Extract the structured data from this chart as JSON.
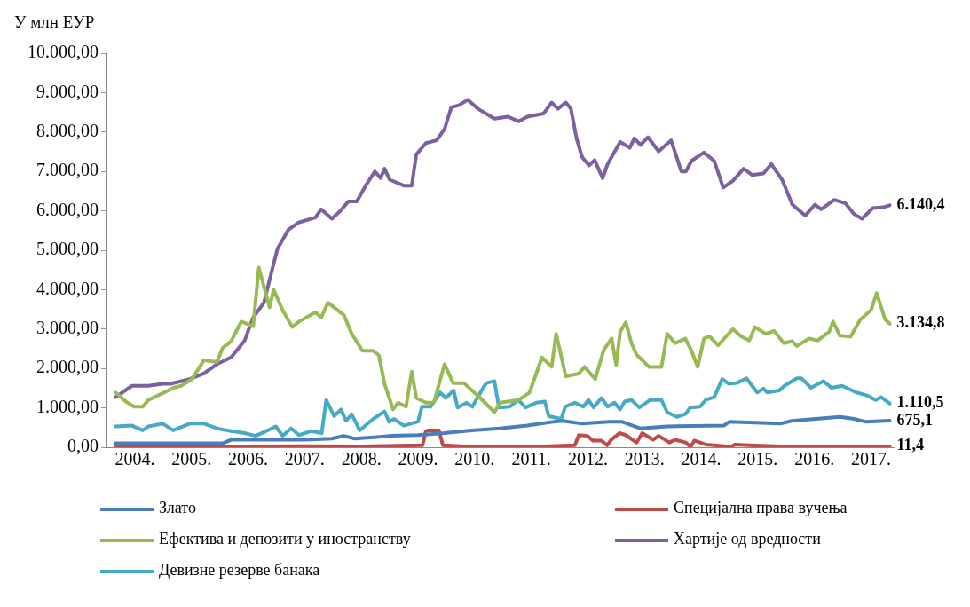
{
  "chart_data": {
    "type": "line",
    "ylabel": "У млн ЕУР",
    "xlim": [
      2004,
      2017.9
    ],
    "xticks": [
      {
        "value": 2004.5,
        "label": "2004."
      },
      {
        "value": 2005.5,
        "label": "2005."
      },
      {
        "value": 2006.5,
        "label": "2006."
      },
      {
        "value": 2007.5,
        "label": "2007."
      },
      {
        "value": 2008.5,
        "label": "2008."
      },
      {
        "value": 2009.5,
        "label": "2009."
      },
      {
        "value": 2010.5,
        "label": "2010."
      },
      {
        "value": 2011.5,
        "label": "2011."
      },
      {
        "value": 2012.5,
        "label": "2012."
      },
      {
        "value": 2013.5,
        "label": "2013."
      },
      {
        "value": 2014.5,
        "label": "2014."
      },
      {
        "value": 2015.5,
        "label": "2015."
      },
      {
        "value": 2016.5,
        "label": "2016."
      },
      {
        "value": 2017.5,
        "label": "2017."
      }
    ],
    "ylim": [
      0,
      10000
    ],
    "yticks": [
      {
        "value": 0,
        "label": "0,00"
      },
      {
        "value": 1000,
        "label": "1.000,00"
      },
      {
        "value": 2000,
        "label": "2.000,00"
      },
      {
        "value": 3000,
        "label": "3.000,00"
      },
      {
        "value": 4000,
        "label": "4.000,00"
      },
      {
        "value": 5000,
        "label": "5.000,00"
      },
      {
        "value": 6000,
        "label": "6.000,00"
      },
      {
        "value": 7000,
        "label": "7.000,00"
      },
      {
        "value": 8000,
        "label": "8.000,00"
      },
      {
        "value": 9000,
        "label": "9.000,00"
      },
      {
        "value": 10000,
        "label": "10.000,00"
      }
    ],
    "grid": false,
    "legend": "bottom",
    "marker": "none",
    "line_style": "solid",
    "series": [
      {
        "name": "Злато",
        "color": "#4a7ebb",
        "x": [
          2004.16,
          2005.5,
          2006.05,
          2006.2,
          2007.0,
          2007.5,
          2007.98,
          2008.19,
          2008.38,
          2008.77,
          2009.0,
          2009.5,
          2009.97,
          2010.45,
          2010.94,
          2011.43,
          2011.91,
          2012.05,
          2012.4,
          2012.88,
          2013.1,
          2013.42,
          2013.9,
          2014.9,
          2015.0,
          2015.9,
          2016.1,
          2016.95,
          2017.2,
          2017.4,
          2017.83
        ],
        "values": [
          100,
          100,
          100,
          190,
          190,
          190,
          220,
          290,
          220,
          260,
          290,
          310,
          360,
          430,
          480,
          550,
          650,
          670,
          600,
          650,
          650,
          480,
          530,
          550,
          650,
          600,
          670,
          770,
          720,
          650,
          675.1
        ],
        "value_labels": [
          null,
          null,
          null,
          null,
          null,
          null,
          null,
          null,
          null,
          null,
          null,
          null,
          null,
          null,
          null,
          null,
          null,
          null,
          null,
          null,
          null,
          null,
          null,
          null,
          null,
          null,
          null,
          null,
          null,
          null,
          "675,1"
        ]
      },
      {
        "name": "Специјална права вучења",
        "color": "#be4b48",
        "x": [
          2004.16,
          2005.5,
          2006.5,
          2007.5,
          2008.5,
          2009.58,
          2009.64,
          2009.68,
          2009.87,
          2009.94,
          2010.5,
          2011.5,
          2012.27,
          2012.34,
          2012.49,
          2012.59,
          2012.74,
          2012.84,
          2012.91,
          2013.06,
          2013.17,
          2013.36,
          2013.46,
          2013.65,
          2013.75,
          2013.94,
          2014.04,
          2014.23,
          2014.31,
          2014.38,
          2014.58,
          2014.73,
          2015.02,
          2015.1,
          2015.35,
          2015.89,
          2016.5,
          2017.0,
          2017.83
        ],
        "values": [
          20,
          30,
          20,
          30,
          20,
          50,
          410,
          430,
          430,
          50,
          10,
          10,
          50,
          310,
          290,
          170,
          170,
          50,
          190,
          360,
          310,
          120,
          360,
          190,
          290,
          120,
          190,
          120,
          0,
          170,
          70,
          50,
          10,
          70,
          50,
          20,
          10,
          10,
          11.4
        ],
        "value_labels": [
          null,
          null,
          null,
          null,
          null,
          null,
          null,
          null,
          null,
          null,
          null,
          null,
          null,
          null,
          null,
          null,
          null,
          null,
          null,
          null,
          null,
          null,
          null,
          null,
          null,
          null,
          null,
          null,
          null,
          null,
          null,
          null,
          null,
          null,
          null,
          null,
          null,
          null,
          "11,4"
        ]
      },
      {
        "name": "Ефектива и депозити у иностранству",
        "color": "#98b954",
        "x": [
          2004.16,
          2004.35,
          2004.49,
          2004.64,
          2004.74,
          2004.99,
          2005.18,
          2005.32,
          2005.51,
          2005.72,
          2005.95,
          2006.05,
          2006.2,
          2006.38,
          2006.59,
          2006.69,
          2006.88,
          2006.95,
          2007.11,
          2007.28,
          2007.4,
          2007.69,
          2007.79,
          2007.91,
          2008.19,
          2008.33,
          2008.52,
          2008.71,
          2008.81,
          2008.91,
          2009.06,
          2009.15,
          2009.29,
          2009.39,
          2009.47,
          2009.64,
          2009.78,
          2009.97,
          2010.12,
          2010.31,
          2010.6,
          2010.85,
          2010.95,
          2011.28,
          2011.47,
          2011.69,
          2011.86,
          2011.94,
          2012.11,
          2012.34,
          2012.44,
          2012.63,
          2012.78,
          2012.92,
          2013.0,
          2013.07,
          2013.17,
          2013.27,
          2013.36,
          2013.58,
          2013.8,
          2013.9,
          2014.04,
          2014.22,
          2014.33,
          2014.44,
          2014.55,
          2014.65,
          2014.8,
          2015.06,
          2015.21,
          2015.35,
          2015.45,
          2015.64,
          2015.79,
          2015.96,
          2016.11,
          2016.19,
          2016.41,
          2016.56,
          2016.76,
          2016.83,
          2016.95,
          2017.14,
          2017.31,
          2017.5,
          2017.6,
          2017.75,
          2017.83
        ],
        "values": [
          1390,
          1150,
          1030,
          1030,
          1200,
          1370,
          1510,
          1560,
          1730,
          2210,
          2160,
          2520,
          2690,
          3190,
          3070,
          4560,
          3550,
          4000,
          3480,
          3050,
          3190,
          3430,
          3290,
          3670,
          3360,
          2880,
          2450,
          2450,
          2330,
          1610,
          960,
          1130,
          1030,
          1920,
          1250,
          1130,
          1130,
          2110,
          1630,
          1630,
          1250,
          890,
          1130,
          1200,
          1390,
          2280,
          2040,
          2880,
          1800,
          1870,
          2040,
          1730,
          2470,
          2760,
          2090,
          2930,
          3170,
          2640,
          2350,
          2040,
          2040,
          2880,
          2640,
          2760,
          2450,
          2040,
          2760,
          2810,
          2590,
          3000,
          2810,
          2710,
          3050,
          2880,
          2950,
          2640,
          2690,
          2570,
          2760,
          2710,
          2930,
          3190,
          2830,
          2810,
          3240,
          3480,
          3910,
          3240,
          3134.8
        ],
        "value_labels": [
          null,
          null,
          null,
          null,
          null,
          null,
          null,
          null,
          null,
          null,
          null,
          null,
          null,
          null,
          null,
          null,
          null,
          null,
          null,
          null,
          null,
          null,
          null,
          null,
          null,
          null,
          null,
          null,
          null,
          null,
          null,
          null,
          null,
          null,
          null,
          null,
          null,
          null,
          null,
          null,
          null,
          null,
          null,
          null,
          null,
          null,
          null,
          null,
          null,
          null,
          null,
          null,
          null,
          null,
          null,
          null,
          null,
          null,
          null,
          null,
          null,
          null,
          null,
          null,
          null,
          null,
          null,
          null,
          null,
          null,
          null,
          null,
          null,
          null,
          null,
          null,
          null,
          null,
          null,
          null,
          null,
          null,
          null,
          null,
          null,
          null,
          null,
          null,
          "3.134,8"
        ]
      },
      {
        "name": "Хартије од вредности",
        "color": "#7d60a0",
        "x": [
          2004.16,
          2004.45,
          2004.74,
          2004.99,
          2005.13,
          2005.47,
          2005.72,
          2005.95,
          2006.2,
          2006.44,
          2006.59,
          2006.78,
          2006.92,
          2007.02,
          2007.21,
          2007.4,
          2007.69,
          2007.79,
          2007.98,
          2008.13,
          2008.27,
          2008.42,
          2008.59,
          2008.74,
          2008.84,
          2008.91,
          2009.0,
          2009.25,
          2009.39,
          2009.47,
          2009.64,
          2009.83,
          2009.97,
          2010.09,
          2010.22,
          2010.38,
          2010.56,
          2010.85,
          2011.09,
          2011.28,
          2011.43,
          2011.72,
          2011.86,
          2011.97,
          2012.11,
          2012.2,
          2012.3,
          2012.4,
          2012.52,
          2012.62,
          2012.76,
          2012.85,
          2013.07,
          2013.24,
          2013.32,
          2013.43,
          2013.56,
          2013.75,
          2013.97,
          2014.15,
          2014.23,
          2014.33,
          2014.55,
          2014.73,
          2014.89,
          2015.06,
          2015.25,
          2015.4,
          2015.6,
          2015.74,
          2015.93,
          2016.11,
          2016.34,
          2016.51,
          2016.62,
          2016.85,
          2017.05,
          2017.2,
          2017.34,
          2017.53,
          2017.71,
          2017.83
        ],
        "values": [
          1270,
          1560,
          1560,
          1610,
          1610,
          1730,
          1870,
          2110,
          2280,
          2710,
          3290,
          3670,
          4480,
          5040,
          5520,
          5710,
          5830,
          6040,
          5800,
          6000,
          6240,
          6240,
          6670,
          7000,
          6830,
          7070,
          6790,
          6640,
          6640,
          7430,
          7720,
          7790,
          8080,
          8630,
          8680,
          8820,
          8590,
          8340,
          8390,
          8270,
          8390,
          8470,
          8750,
          8590,
          8750,
          8590,
          7840,
          7360,
          7150,
          7290,
          6830,
          7190,
          7750,
          7600,
          7840,
          7670,
          7870,
          7510,
          7790,
          7000,
          7000,
          7270,
          7480,
          7270,
          6590,
          6760,
          7070,
          6910,
          6950,
          7190,
          6790,
          6160,
          5880,
          6160,
          6040,
          6280,
          6190,
          5920,
          5800,
          6070,
          6090,
          6140.4
        ],
        "value_labels": [
          null,
          null,
          null,
          null,
          null,
          null,
          null,
          null,
          null,
          null,
          null,
          null,
          null,
          null,
          null,
          null,
          null,
          null,
          null,
          null,
          null,
          null,
          null,
          null,
          null,
          null,
          null,
          null,
          null,
          null,
          null,
          null,
          null,
          null,
          null,
          null,
          null,
          null,
          null,
          null,
          null,
          null,
          null,
          null,
          null,
          null,
          null,
          null,
          null,
          null,
          null,
          null,
          null,
          null,
          null,
          null,
          null,
          null,
          null,
          null,
          null,
          null,
          null,
          null,
          null,
          null,
          null,
          null,
          null,
          null,
          null,
          null,
          null,
          null,
          null,
          null,
          null,
          null,
          null,
          null,
          null,
          "6.140,4"
        ]
      },
      {
        "name": "Девизне резерве банака",
        "color": "#46aac5",
        "x": [
          2004.16,
          2004.45,
          2004.64,
          2004.74,
          2004.99,
          2005.18,
          2005.47,
          2005.72,
          2005.95,
          2006.2,
          2006.44,
          2006.63,
          2006.82,
          2006.99,
          2007.11,
          2007.26,
          2007.4,
          2007.61,
          2007.8,
          2007.88,
          2008.02,
          2008.14,
          2008.23,
          2008.33,
          2008.47,
          2008.71,
          2008.91,
          2008.99,
          2009.08,
          2009.25,
          2009.5,
          2009.57,
          2009.72,
          2009.89,
          2009.99,
          2010.13,
          2010.2,
          2010.36,
          2010.46,
          2010.65,
          2010.71,
          2010.85,
          2010.93,
          2011.12,
          2011.27,
          2011.4,
          2011.59,
          2011.74,
          2011.81,
          2012.03,
          2012.1,
          2012.27,
          2012.42,
          2012.51,
          2012.6,
          2012.74,
          2012.85,
          2012.97,
          2013.07,
          2013.15,
          2013.27,
          2013.41,
          2013.6,
          2013.8,
          2013.9,
          2014.07,
          2014.22,
          2014.31,
          2014.48,
          2014.58,
          2014.73,
          2014.87,
          2014.99,
          2015.13,
          2015.3,
          2015.49,
          2015.6,
          2015.67,
          2015.88,
          2015.97,
          2016.19,
          2016.27,
          2016.44,
          2016.66,
          2016.8,
          2016.99,
          2017.24,
          2017.42,
          2017.58,
          2017.68,
          2017.83
        ],
        "values": [
          530,
          550,
          430,
          530,
          600,
          430,
          600,
          600,
          480,
          410,
          360,
          290,
          410,
          530,
          290,
          480,
          310,
          410,
          360,
          1200,
          790,
          960,
          670,
          840,
          430,
          720,
          910,
          650,
          720,
          550,
          650,
          1030,
          1030,
          1390,
          1250,
          1440,
          1010,
          1130,
          1030,
          1510,
          1630,
          1680,
          1010,
          1030,
          1200,
          1010,
          1130,
          1160,
          790,
          720,
          1030,
          1130,
          1030,
          1200,
          1010,
          1250,
          1030,
          1130,
          960,
          1160,
          1200,
          1010,
          1200,
          1200,
          890,
          770,
          840,
          1010,
          1030,
          1200,
          1270,
          1730,
          1610,
          1630,
          1750,
          1390,
          1490,
          1390,
          1440,
          1560,
          1750,
          1750,
          1510,
          1680,
          1510,
          1560,
          1390,
          1320,
          1200,
          1270,
          1110.5
        ],
        "value_labels": [
          null,
          null,
          null,
          null,
          null,
          null,
          null,
          null,
          null,
          null,
          null,
          null,
          null,
          null,
          null,
          null,
          null,
          null,
          null,
          null,
          null,
          null,
          null,
          null,
          null,
          null,
          null,
          null,
          null,
          null,
          null,
          null,
          null,
          null,
          null,
          null,
          null,
          null,
          null,
          null,
          null,
          null,
          null,
          null,
          null,
          null,
          null,
          null,
          null,
          null,
          null,
          null,
          null,
          null,
          null,
          null,
          null,
          null,
          null,
          null,
          null,
          null,
          null,
          null,
          null,
          null,
          null,
          null,
          null,
          null,
          null,
          null,
          null,
          null,
          null,
          null,
          null,
          null,
          null,
          null,
          null,
          null,
          null,
          null,
          null,
          null,
          null,
          null,
          null,
          null,
          "1.110,5"
        ]
      }
    ]
  }
}
